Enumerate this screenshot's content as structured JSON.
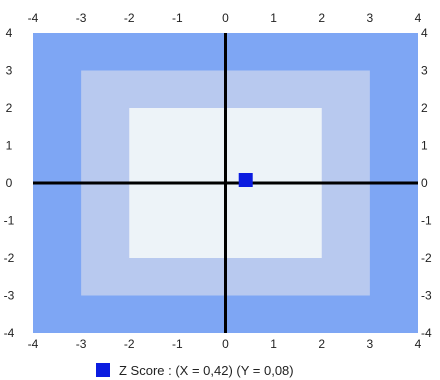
{
  "chart_data": {
    "type": "scatter",
    "xlim": [
      -4,
      4
    ],
    "ylim": [
      -4,
      4
    ],
    "x_ticks": [
      "-4",
      "-3",
      "-2",
      "-1",
      "0",
      "1",
      "2",
      "3",
      "4"
    ],
    "y_ticks": [
      "4",
      "3",
      "2",
      "1",
      "0",
      "-1",
      "-2",
      "-3",
      "-4"
    ],
    "bands": [
      {
        "range": 4,
        "color": "#7ea6f4"
      },
      {
        "range": 3,
        "color": "#b8c9ef"
      },
      {
        "range": 2,
        "color": "#edf3f8"
      }
    ],
    "axis_color": "#000000",
    "point": {
      "x": 0.42,
      "y": 0.08,
      "color": "#0b1ce0"
    },
    "legend": {
      "text": "Z Score : (X = 0,42) (Y = 0,08)",
      "color": "#0b1ce0",
      "position": "bottom-center"
    }
  }
}
